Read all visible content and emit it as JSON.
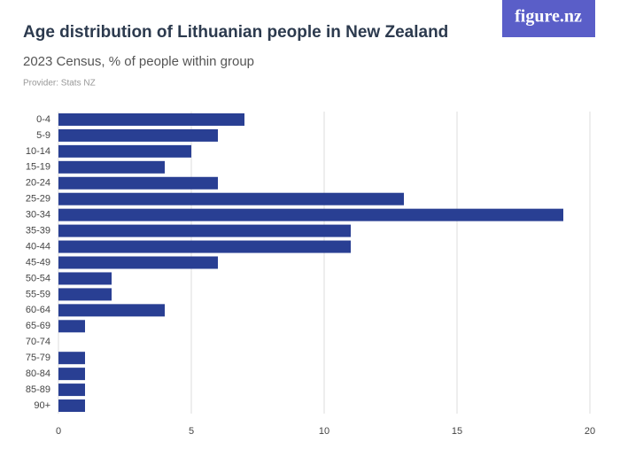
{
  "logo": "figure.nz",
  "chart_data": {
    "type": "bar",
    "orientation": "horizontal",
    "title": "Age distribution of Lithuanian people in New Zealand",
    "subtitle": "2023 Census, % of people within group",
    "provider": "Provider: Stats NZ",
    "categories": [
      "0-4",
      "5-9",
      "10-14",
      "15-19",
      "20-24",
      "25-29",
      "30-34",
      "35-39",
      "40-44",
      "45-49",
      "50-54",
      "55-59",
      "60-64",
      "65-69",
      "70-74",
      "75-79",
      "80-84",
      "85-89",
      "90+"
    ],
    "values": [
      7,
      6,
      5,
      4,
      6,
      13,
      19,
      11,
      11,
      6,
      2,
      2,
      4,
      1,
      0,
      1,
      1,
      1,
      1
    ],
    "color": "#293f93",
    "xlim": [
      0,
      20
    ],
    "xticks": [
      0,
      5,
      10,
      15,
      20
    ],
    "grid": true
  }
}
